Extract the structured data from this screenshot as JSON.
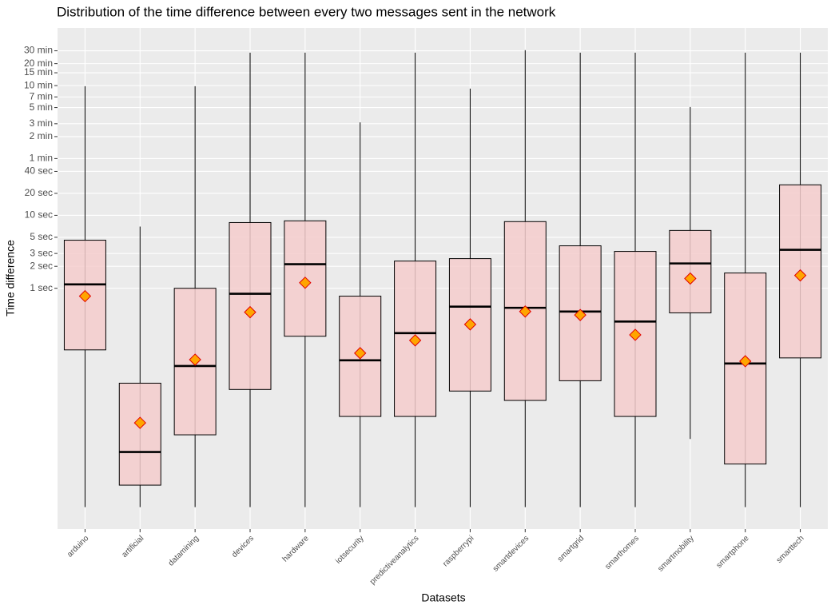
{
  "chart_data": {
    "type": "boxplot",
    "title": "Distribution of the time difference between every two messages sent in the network",
    "x_label": "Datasets",
    "y_label": "Time difference",
    "categories": [
      "arduino",
      "artificial",
      "datamining",
      "devices",
      "hardware",
      "iotsecurity",
      "predictiveanalytics",
      "raspberrypi",
      "smartdevices",
      "smartgrid",
      "smarthomes",
      "smartmobility",
      "smartphone",
      "smarttech"
    ],
    "whisker_low": [
      0.001,
      0.001,
      0.001,
      0.001,
      0.001,
      0.001,
      0.001,
      0.001,
      0.001,
      0.001,
      0.001,
      0.0086,
      0.001,
      0.001
    ],
    "q1": [
      0.143,
      0.002,
      0.0098,
      0.041,
      0.22,
      0.0175,
      0.0175,
      0.039,
      0.029,
      0.054,
      0.0175,
      0.46,
      0.0039,
      0.111
    ],
    "median": [
      1.13,
      0.0057,
      0.086,
      0.84,
      2.14,
      0.103,
      0.243,
      0.56,
      0.54,
      0.48,
      0.35,
      2.19,
      0.093,
      3.37
    ],
    "q3": [
      4.56,
      0.05,
      1,
      7.96,
      8.4,
      0.78,
      2.36,
      2.55,
      8.2,
      3.82,
      3.2,
      6.2,
      1.62,
      26.2
    ],
    "whisker_high": [
      588,
      7,
      588,
      1700,
      1700,
      188,
      1700,
      545,
      1835,
      1700,
      1700,
      305,
      1700,
      1700
    ],
    "mean": [
      0.78,
      0.0143,
      0.105,
      0.47,
      1.19,
      0.129,
      0.193,
      0.32,
      0.48,
      0.43,
      0.23,
      1.36,
      0.1,
      1.5
    ],
    "box_color": "#f4cccc",
    "mean_color": "#ffa500",
    "mean_edge_color": "#e00000",
    "log_y": true,
    "grid": true,
    "ylim": [
      0.0005,
      3700
    ],
    "yticks": [
      {
        "value": 1,
        "label": "1 sec"
      },
      {
        "value": 2,
        "label": "2 sec"
      },
      {
        "value": 3,
        "label": "3 sec"
      },
      {
        "value": 5,
        "label": "5 sec"
      },
      {
        "value": 10,
        "label": "10 sec"
      },
      {
        "value": 20,
        "label": "20 sec"
      },
      {
        "value": 40,
        "label": "40 sec"
      },
      {
        "value": 60,
        "label": "1 min"
      },
      {
        "value": 120,
        "label": "2 min"
      },
      {
        "value": 180,
        "label": "3 min"
      },
      {
        "value": 300,
        "label": "5 min"
      },
      {
        "value": 420,
        "label": "7 min"
      },
      {
        "value": 600,
        "label": "10 min"
      },
      {
        "value": 900,
        "label": "15 min"
      },
      {
        "value": 1200,
        "label": "20 min"
      },
      {
        "value": 1800,
        "label": "30 min"
      }
    ]
  }
}
